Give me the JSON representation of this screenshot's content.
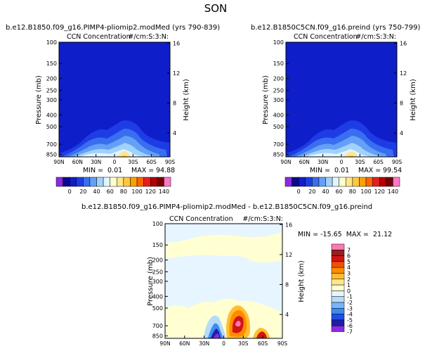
{
  "figure": {
    "season": "SON"
  },
  "colors": {
    "ccn_palette": [
      "#8a2be2",
      "#0a0a8c",
      "#0e1ec8",
      "#1e3ce6",
      "#3a6ef0",
      "#64a0f5",
      "#a0d2fa",
      "#e1f5ff",
      "#ffffcd",
      "#ffe68c",
      "#ffc83c",
      "#ffa000",
      "#ff6400",
      "#e61e1e",
      "#b40000",
      "#780000",
      "#ff78c8"
    ],
    "diff_palette": [
      "#8a2be2",
      "#1e1eaa",
      "#1e50e6",
      "#3c8cf0",
      "#78b4fa",
      "#b4dcfa",
      "#e6f5ff",
      "#ffffd2",
      "#ffe68c",
      "#ffbe32",
      "#ff8c00",
      "#f05000",
      "#d21414",
      "#961e1e",
      "#ff78b4"
    ]
  },
  "chart_data": [
    {
      "type": "heatmap",
      "title": "b.e12.B1850.f09_g16.PIMP4-pliomip2.modMed (yrs 790-839)",
      "subtitle": "CCN Concentration",
      "units": "#/cm:S:3:N:",
      "xlabel": "",
      "ylabel": "Pressure (mb)",
      "y2label": "Height (km)",
      "x_ticks": [
        "90N",
        "60N",
        "30N",
        "0",
        "30S",
        "60S",
        "90S"
      ],
      "y_ticks": [
        "100",
        "150",
        "200",
        "250",
        "300",
        "400",
        "500",
        "700",
        "850"
      ],
      "y2_ticks": [
        "16",
        "12",
        "8",
        "4"
      ],
      "min_label": "MIN =",
      "min_value": "0.01",
      "max_label": "MAX =",
      "max_value": "94.88",
      "colorbar_labels": [
        "0",
        "20",
        "40",
        "60",
        "80",
        "100",
        "120",
        "140"
      ]
    },
    {
      "type": "heatmap",
      "title": "b.e12.B1850C5CN.f09_g16.preind (yrs 750-799)",
      "subtitle": "CCN Concentration",
      "units": "#/cm:S:3:N:",
      "xlabel": "",
      "ylabel": "Pressure (mb)",
      "y2label": "Height (km)",
      "x_ticks": [
        "90N",
        "60N",
        "30N",
        "0",
        "30S",
        "60S",
        "90S"
      ],
      "y_ticks": [
        "100",
        "150",
        "200",
        "250",
        "300",
        "400",
        "500",
        "700",
        "850"
      ],
      "y2_ticks": [
        "16",
        "12",
        "8",
        "4"
      ],
      "min_label": "MIN =",
      "min_value": "0.01",
      "max_label": "MAX =",
      "max_value": "99.54",
      "colorbar_labels": [
        "0",
        "20",
        "40",
        "60",
        "80",
        "100",
        "120",
        "140"
      ]
    },
    {
      "type": "heatmap",
      "title": "b.e12.B1850.f09_g16.PIMP4-pliomip2.modMed - b.e12.B1850C5CN.f09_g16.preind",
      "subtitle": "CCN Concentration",
      "units": "#/cm:S:3:N:",
      "xlabel": "",
      "ylabel": "Pressure (mb)",
      "y2label": "Height (km)",
      "x_ticks": [
        "90N",
        "60N",
        "30N",
        "0",
        "30S",
        "60S",
        "90S"
      ],
      "y_ticks": [
        "100",
        "150",
        "200",
        "250",
        "300",
        "400",
        "500",
        "700",
        "850"
      ],
      "y2_ticks": [
        "16",
        "12",
        "8",
        "4"
      ],
      "minmax_text": "MIN = -15.65  MAX =  21.12",
      "colorbar_labels": [
        "7",
        "6",
        "5",
        "4",
        "3",
        "2",
        "1",
        "0",
        "-1",
        "-2",
        "-3",
        "-4",
        "-5",
        "-6",
        "-7"
      ]
    }
  ]
}
